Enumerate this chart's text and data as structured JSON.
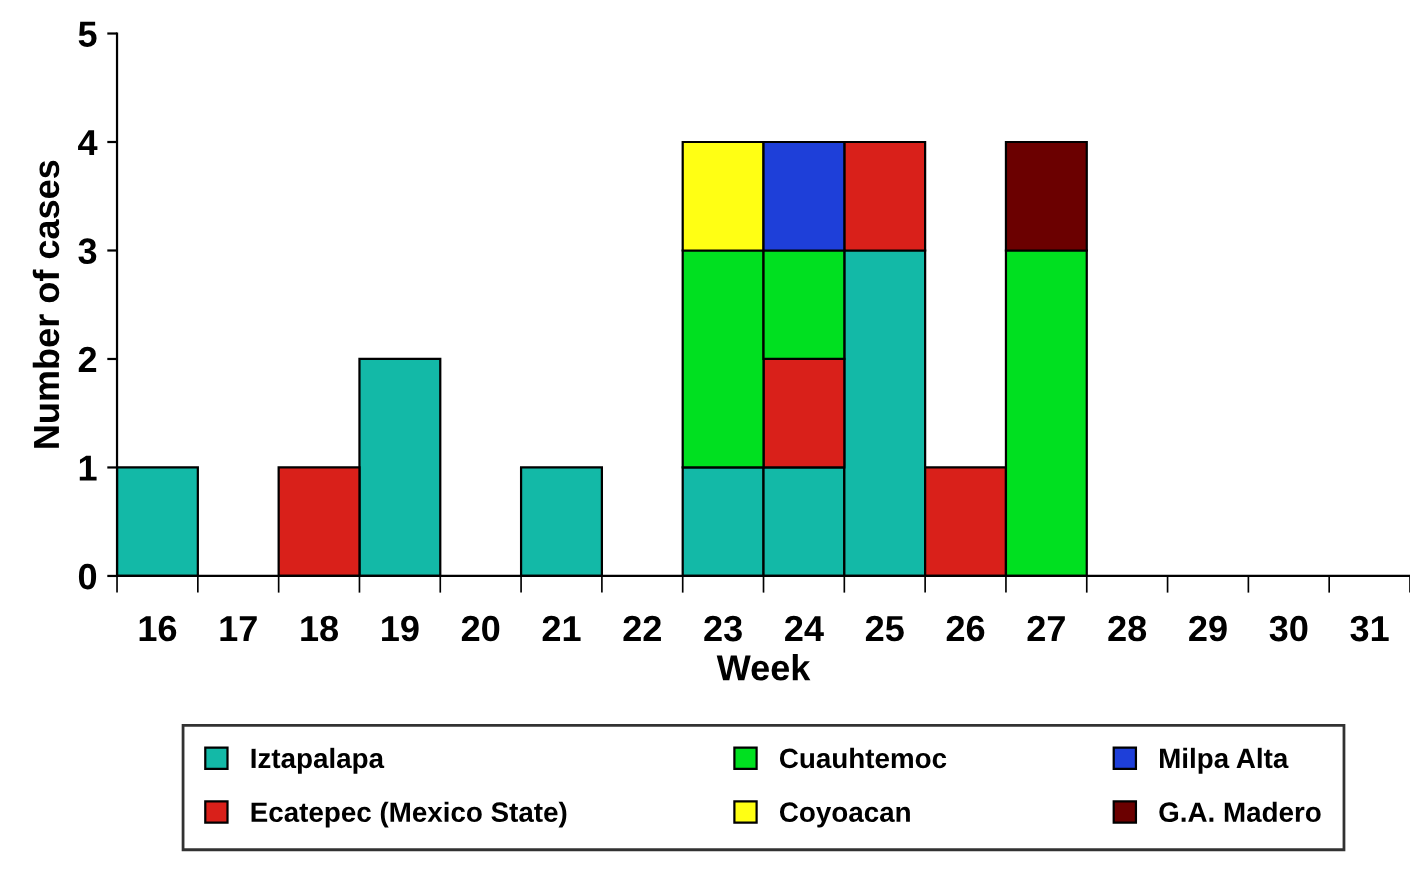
{
  "chart_data": {
    "type": "bar",
    "stacked": true,
    "xlabel": "Week",
    "ylabel": "Number of cases",
    "categories": [
      "16",
      "17",
      "18",
      "19",
      "20",
      "21",
      "22",
      "23",
      "24",
      "25",
      "26",
      "27",
      "28",
      "29",
      "30",
      "31"
    ],
    "ylim": [
      0,
      5
    ],
    "yticks": [
      0,
      1,
      2,
      3,
      4,
      5
    ],
    "grid": false,
    "legend": "bottom",
    "series": [
      {
        "name": "Iztapalapa",
        "color": "#13b9a7",
        "values": [
          1,
          null,
          null,
          2,
          null,
          1,
          null,
          1,
          1,
          3,
          null,
          null,
          null,
          null,
          null,
          null
        ]
      },
      {
        "name": "Ecatepec (Mexico State)",
        "color": "#d9201a",
        "values": [
          null,
          null,
          1,
          null,
          null,
          null,
          null,
          null,
          1,
          1,
          1,
          null,
          null,
          null,
          null,
          null
        ]
      },
      {
        "name": "Cuauhtemoc",
        "color": "#00e020",
        "values": [
          null,
          null,
          null,
          null,
          null,
          null,
          null,
          2,
          1,
          null,
          null,
          3,
          null,
          null,
          null,
          null
        ]
      },
      {
        "name": "Coyoacan",
        "color": "#ffff14",
        "values": [
          null,
          null,
          null,
          null,
          null,
          null,
          null,
          1,
          null,
          null,
          null,
          null,
          null,
          null,
          null,
          null
        ]
      },
      {
        "name": "Milpa Alta",
        "color": "#1e3fd9",
        "values": [
          null,
          null,
          null,
          null,
          null,
          null,
          null,
          null,
          1,
          null,
          null,
          null,
          null,
          null,
          null,
          null
        ]
      },
      {
        "name": "G.A. Madero",
        "color": "#6b0000",
        "values": [
          null,
          null,
          null,
          null,
          null,
          null,
          null,
          null,
          null,
          null,
          null,
          1,
          null,
          null,
          null,
          null
        ]
      }
    ]
  }
}
